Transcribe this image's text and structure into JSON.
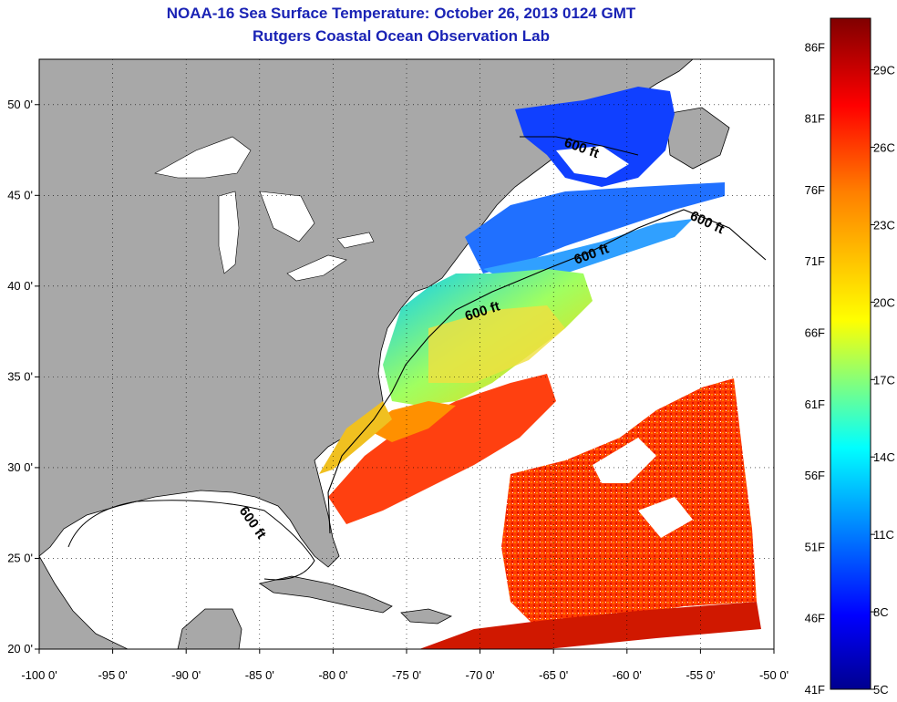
{
  "title_line1": "NOAA-16 Sea Surface Temperature:  October 26, 2013 0124 GMT",
  "title_line2": "Rutgers Coastal Ocean Observation Lab",
  "map": {
    "projection": "lat-lon",
    "lon_range": [
      -100,
      -50
    ],
    "lat_range": [
      20,
      52.5
    ],
    "lon_ticks": [
      -100,
      -95,
      -90,
      -85,
      -80,
      -75,
      -70,
      -65,
      -60,
      -55,
      -50
    ],
    "lon_tick_labels": [
      "-100 0'",
      "-95 0'",
      "-90 0'",
      "-85 0'",
      "-80 0'",
      "-75 0'",
      "-70 0'",
      "-65 0'",
      "-60 0'",
      "-55 0'",
      "-50 0'"
    ],
    "lat_ticks": [
      20,
      25,
      30,
      35,
      40,
      45,
      50
    ],
    "lat_tick_labels": [
      "20 0'",
      "25 0'",
      "30 0'",
      "35 0'",
      "40 0'",
      "45 0'",
      "50 0'"
    ],
    "grid": "dotted",
    "land_color": "#a8a8a8",
    "no_data_color": "#ffffff",
    "contour_labels": [
      "600 ft",
      "600 ft",
      "600 ft",
      "600 ft",
      "600 ft"
    ]
  },
  "colorbar": {
    "range_c": [
      5,
      31
    ],
    "range_f": [
      41,
      88
    ],
    "f_labels": [
      "86F",
      "81F",
      "76F",
      "71F",
      "66F",
      "61F",
      "56F",
      "51F",
      "46F",
      "41F"
    ],
    "c_labels": [
      "29C",
      "26C",
      "23C",
      "20C",
      "17C",
      "14C",
      "11C",
      "8C",
      "5C"
    ],
    "colors": [
      "#00008f",
      "#0000ff",
      "#0080ff",
      "#00ffff",
      "#80ff80",
      "#ffff00",
      "#ff8000",
      "#ff0000",
      "#800000"
    ]
  }
}
